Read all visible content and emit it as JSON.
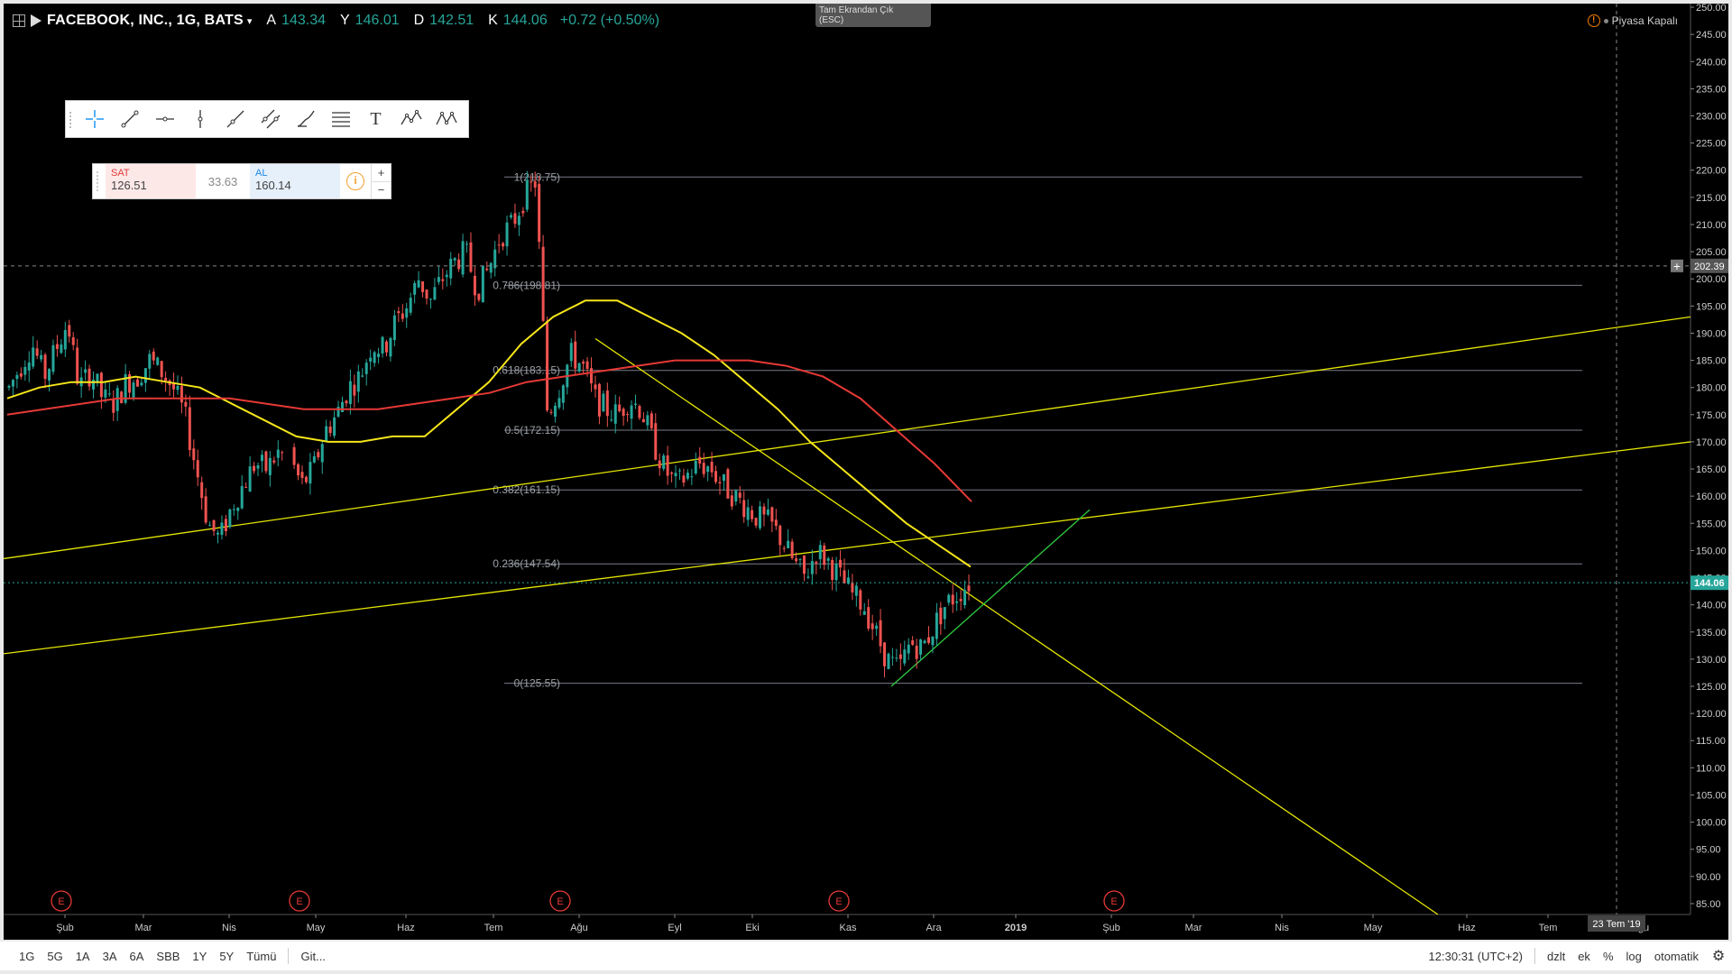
{
  "header": {
    "symbol": "FACEBOOK, INC., 1G, BATS",
    "open_label": "A",
    "open": "143.34",
    "high_label": "Y",
    "high": "146.01",
    "low_label": "D",
    "low": "142.51",
    "close_label": "K",
    "close": "144.06",
    "change": "+0.72 (+0.50%)"
  },
  "exit_fullscreen": {
    "line1": "Tam Ekrandan Çık",
    "line2": "(ESC)"
  },
  "market_status": "Piyasa Kapalı",
  "trade_panel": {
    "sell_label": "SAT",
    "sell_value": "126.51",
    "spread": "33.63",
    "buy_label": "AL",
    "buy_value": "160.14",
    "plus": "+",
    "minus": "−"
  },
  "drawing_tools": [
    "crosshair-icon",
    "trend-line-icon",
    "horizontal-ray-icon",
    "vertical-line-icon",
    "ray-icon",
    "parallel-channel-icon",
    "brush-icon",
    "fib-retracement-icon",
    "text-icon",
    "elliott-wave-icon",
    "xabcd-pattern-icon"
  ],
  "text_tool_glyph": "T",
  "bottom_bar": {
    "ranges": [
      "1G",
      "5G",
      "1A",
      "3A",
      "6A",
      "SBB",
      "1Y",
      "5Y",
      "Tümü"
    ],
    "goto": "Git...",
    "time": "12:30:31 (UTC+2)",
    "options": [
      "dzlt",
      "ek",
      "%",
      "log",
      "otomatik"
    ]
  },
  "colors": {
    "up": "#26a69a",
    "down": "#ef5350",
    "ma50": "#f5e51b",
    "ma200": "#e53935",
    "trendline": "#e6e600",
    "support": "#2ecc40",
    "fib": "#787b86"
  },
  "chart_data": {
    "type": "candlestick",
    "title": "FACEBOOK, INC., 1G, BATS",
    "ylim": [
      83,
      251
    ],
    "y_ticks": [
      "85.00",
      "90.00",
      "95.00",
      "100.00",
      "105.00",
      "110.00",
      "115.00",
      "120.00",
      "125.00",
      "130.00",
      "135.00",
      "140.00",
      "145.00",
      "150.00",
      "155.00",
      "160.00",
      "165.00",
      "170.00",
      "175.00",
      "180.00",
      "185.00",
      "190.00",
      "195.00",
      "200.00",
      "205.00",
      "210.00",
      "215.00",
      "220.00",
      "225.00",
      "230.00",
      "235.00",
      "240.00",
      "245.00",
      "250.00"
    ],
    "x_labels": [
      "Şub",
      "Mar",
      "Nis",
      "May",
      "Haz",
      "Tem",
      "Ağu",
      "Eyl",
      "Eki",
      "Kas",
      "Ara",
      "2019",
      "Şub",
      "Mar",
      "Nis",
      "May",
      "Haz",
      "Tem"
    ],
    "x_label_trailing": "ğu",
    "crosshair_date": "23 Tem '19",
    "crosshair_price": "202.39",
    "last_price": "144.06",
    "earnings_marker": "E",
    "earnings_count": 5,
    "fib_levels": [
      {
        "label": "1(218.75)",
        "value": 218.75
      },
      {
        "label": "0.786(198.81)",
        "value": 198.81
      },
      {
        "label": "0.618(183.15)",
        "value": 183.15
      },
      {
        "label": "0.5(172.15)",
        "value": 172.15
      },
      {
        "label": "0.382(161.15)",
        "value": 161.15
      },
      {
        "label": "0.236(147.54)",
        "value": 147.54
      },
      {
        "label": "0(125.55)",
        "value": 125.55
      }
    ],
    "series": [
      {
        "name": "",
        "type": "candles",
        "close_path": [
          180,
          184,
          188,
          182,
          187,
          192,
          180,
          183,
          178,
          177,
          181,
          182,
          185,
          183,
          180,
          175,
          165,
          155,
          152,
          158,
          162,
          166,
          165,
          168,
          167,
          162,
          165,
          172,
          175,
          180,
          182,
          188,
          187,
          192,
          195,
          200,
          196,
          200,
          203,
          205,
          198,
          202,
          208,
          210,
          215,
          218,
          175,
          180,
          186,
          184,
          178,
          176,
          175,
          178,
          176,
          170,
          165,
          162,
          164,
          166,
          165,
          162,
          160,
          158,
          156,
          155,
          152,
          148,
          145,
          150,
          148,
          145,
          142,
          140,
          135,
          130,
          128,
          133,
          132,
          136,
          140,
          142,
          144
        ]
      },
      {
        "name": "",
        "type": "ma50",
        "values": [
          178,
          180,
          181,
          181,
          182,
          181,
          180,
          177,
          174,
          171,
          170,
          170,
          171,
          171,
          176,
          181,
          188,
          193,
          196,
          196,
          193,
          190,
          186,
          181,
          176,
          170,
          165,
          160,
          155,
          151,
          147
        ]
      },
      {
        "name": "",
        "type": "ma200",
        "values": [
          175,
          176,
          177,
          178,
          178,
          178,
          178,
          177,
          176,
          176,
          176,
          177,
          178,
          179,
          181,
          182,
          183,
          184,
          185,
          185,
          185,
          184,
          182,
          178,
          172,
          166,
          159
        ]
      }
    ]
  }
}
